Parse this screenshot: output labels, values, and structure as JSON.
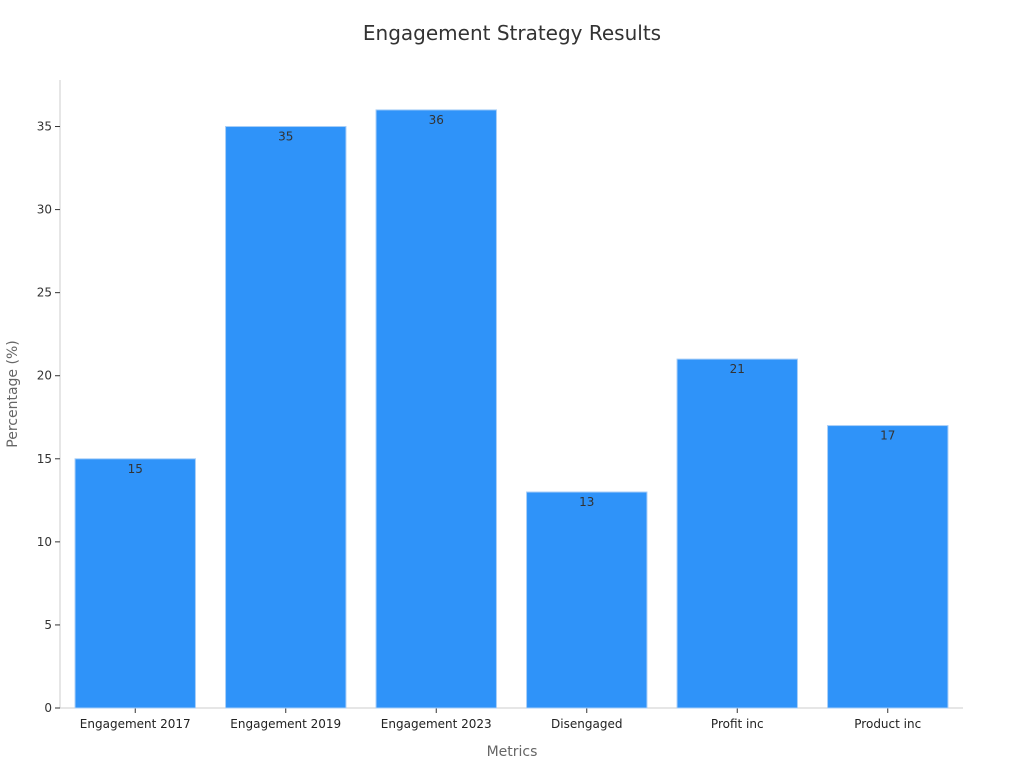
{
  "chart_data": {
    "type": "bar",
    "title": "Engagement Strategy Results",
    "xlabel": "Metrics",
    "ylabel": "Percentage (%)",
    "categories": [
      "Engagement 2017",
      "Engagement 2019",
      "Engagement 2023",
      "Disengaged",
      "Profit inc",
      "Product inc"
    ],
    "values": [
      15,
      35,
      36,
      13,
      21,
      17
    ],
    "ylim": [
      0,
      37.8
    ],
    "yticks": [
      0,
      5,
      10,
      15,
      20,
      25,
      30,
      35
    ],
    "bar_color": "#2f93f9",
    "bar_edge_color": "#a6cdf7",
    "grid": false,
    "legend": "none"
  }
}
